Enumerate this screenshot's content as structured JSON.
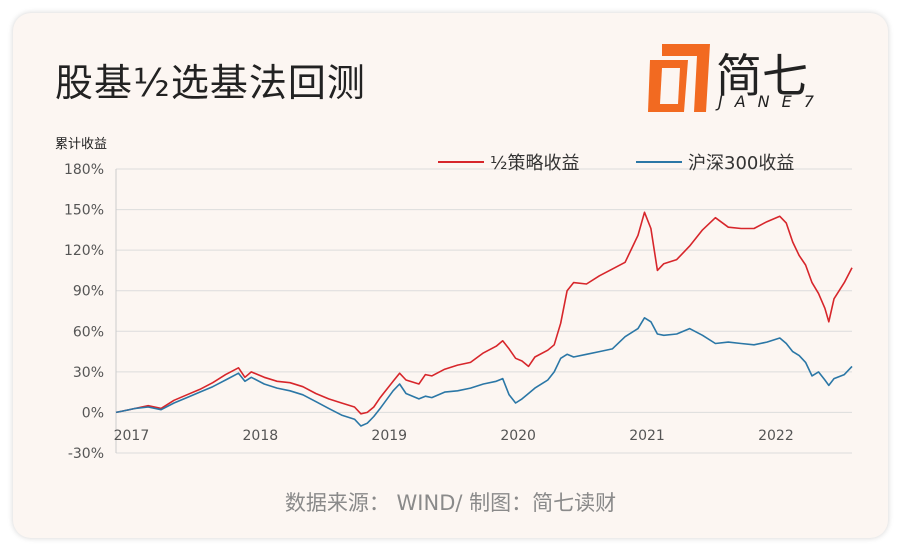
{
  "header": {
    "title": "股基½选基法回测"
  },
  "logo": {
    "name": "简七",
    "sub": "JANE7",
    "accent": "#f26a21"
  },
  "source": "数据来源： WIND/ 制图：简七读财",
  "chart_data": {
    "type": "line",
    "title": "股基½选基法回测",
    "ylabel": "累计收益",
    "xlabel": "",
    "ylim": [
      -30,
      180
    ],
    "yticks": [
      -30,
      0,
      30,
      60,
      90,
      120,
      150,
      180
    ],
    "ytick_labels": [
      "-30%",
      "0%",
      "30%",
      "60%",
      "90%",
      "120%",
      "150%",
      "180%"
    ],
    "xlim": [
      2016.95,
      2022.66
    ],
    "xticks": [
      2017,
      2018,
      2019,
      2020,
      2021,
      2022
    ],
    "xtick_labels": [
      "2017",
      "2018",
      "2019",
      "2020",
      "2021",
      "2022"
    ],
    "grid": true,
    "legend_position": "top-right",
    "series": [
      {
        "name": "½策略收益",
        "color": "#d7262b",
        "points": [
          [
            2016.95,
            0
          ],
          [
            2017.0,
            1
          ],
          [
            2017.1,
            3
          ],
          [
            2017.2,
            5
          ],
          [
            2017.3,
            3
          ],
          [
            2017.4,
            9
          ],
          [
            2017.5,
            13
          ],
          [
            2017.6,
            17
          ],
          [
            2017.7,
            22
          ],
          [
            2017.8,
            28
          ],
          [
            2017.9,
            33
          ],
          [
            2017.95,
            26
          ],
          [
            2018.0,
            30
          ],
          [
            2018.1,
            26
          ],
          [
            2018.2,
            23
          ],
          [
            2018.3,
            22
          ],
          [
            2018.4,
            19
          ],
          [
            2018.5,
            14
          ],
          [
            2018.6,
            10
          ],
          [
            2018.7,
            7
          ],
          [
            2018.8,
            4
          ],
          [
            2018.85,
            -1
          ],
          [
            2018.9,
            0
          ],
          [
            2018.95,
            4
          ],
          [
            2019.0,
            11
          ],
          [
            2019.1,
            23
          ],
          [
            2019.15,
            29
          ],
          [
            2019.2,
            24
          ],
          [
            2019.3,
            21
          ],
          [
            2019.35,
            28
          ],
          [
            2019.4,
            27
          ],
          [
            2019.5,
            32
          ],
          [
            2019.6,
            35
          ],
          [
            2019.7,
            37
          ],
          [
            2019.8,
            44
          ],
          [
            2019.9,
            49
          ],
          [
            2019.95,
            53
          ],
          [
            2020.0,
            47
          ],
          [
            2020.05,
            40
          ],
          [
            2020.1,
            38
          ],
          [
            2020.15,
            34
          ],
          [
            2020.2,
            41
          ],
          [
            2020.3,
            46
          ],
          [
            2020.35,
            50
          ],
          [
            2020.4,
            66
          ],
          [
            2020.45,
            90
          ],
          [
            2020.5,
            96
          ],
          [
            2020.6,
            95
          ],
          [
            2020.7,
            101
          ],
          [
            2020.8,
            106
          ],
          [
            2020.9,
            111
          ],
          [
            2021.0,
            131
          ],
          [
            2021.05,
            148
          ],
          [
            2021.1,
            136
          ],
          [
            2021.15,
            105
          ],
          [
            2021.2,
            110
          ],
          [
            2021.3,
            113
          ],
          [
            2021.4,
            123
          ],
          [
            2021.5,
            135
          ],
          [
            2021.6,
            144
          ],
          [
            2021.7,
            137
          ],
          [
            2021.8,
            136
          ],
          [
            2021.9,
            136
          ],
          [
            2022.0,
            141
          ],
          [
            2022.1,
            145
          ],
          [
            2022.15,
            140
          ],
          [
            2022.2,
            126
          ],
          [
            2022.25,
            116
          ],
          [
            2022.3,
            109
          ],
          [
            2022.35,
            96
          ],
          [
            2022.4,
            88
          ],
          [
            2022.45,
            77
          ],
          [
            2022.48,
            67
          ],
          [
            2022.52,
            84
          ],
          [
            2022.6,
            96
          ],
          [
            2022.66,
            107
          ]
        ]
      },
      {
        "name": "沪深300收益",
        "color": "#2b77a6",
        "points": [
          [
            2016.95,
            0
          ],
          [
            2017.0,
            1
          ],
          [
            2017.1,
            3
          ],
          [
            2017.2,
            4
          ],
          [
            2017.3,
            2
          ],
          [
            2017.4,
            7
          ],
          [
            2017.5,
            11
          ],
          [
            2017.6,
            15
          ],
          [
            2017.7,
            19
          ],
          [
            2017.8,
            24
          ],
          [
            2017.9,
            29
          ],
          [
            2017.95,
            23
          ],
          [
            2018.0,
            26
          ],
          [
            2018.1,
            21
          ],
          [
            2018.2,
            18
          ],
          [
            2018.3,
            16
          ],
          [
            2018.4,
            13
          ],
          [
            2018.5,
            8
          ],
          [
            2018.6,
            3
          ],
          [
            2018.7,
            -2
          ],
          [
            2018.8,
            -5
          ],
          [
            2018.85,
            -10
          ],
          [
            2018.9,
            -8
          ],
          [
            2018.95,
            -3
          ],
          [
            2019.0,
            3
          ],
          [
            2019.1,
            16
          ],
          [
            2019.15,
            21
          ],
          [
            2019.2,
            14
          ],
          [
            2019.3,
            10
          ],
          [
            2019.35,
            12
          ],
          [
            2019.4,
            11
          ],
          [
            2019.5,
            15
          ],
          [
            2019.6,
            16
          ],
          [
            2019.7,
            18
          ],
          [
            2019.8,
            21
          ],
          [
            2019.9,
            23
          ],
          [
            2019.95,
            25
          ],
          [
            2020.0,
            13
          ],
          [
            2020.05,
            7
          ],
          [
            2020.1,
            10
          ],
          [
            2020.15,
            14
          ],
          [
            2020.2,
            18
          ],
          [
            2020.3,
            24
          ],
          [
            2020.35,
            30
          ],
          [
            2020.4,
            40
          ],
          [
            2020.45,
            43
          ],
          [
            2020.5,
            41
          ],
          [
            2020.6,
            43
          ],
          [
            2020.7,
            45
          ],
          [
            2020.8,
            47
          ],
          [
            2020.9,
            56
          ],
          [
            2021.0,
            62
          ],
          [
            2021.05,
            70
          ],
          [
            2021.1,
            67
          ],
          [
            2021.15,
            58
          ],
          [
            2021.2,
            57
          ],
          [
            2021.3,
            58
          ],
          [
            2021.4,
            62
          ],
          [
            2021.5,
            57
          ],
          [
            2021.6,
            51
          ],
          [
            2021.7,
            52
          ],
          [
            2021.8,
            51
          ],
          [
            2021.9,
            50
          ],
          [
            2022.0,
            52
          ],
          [
            2022.1,
            55
          ],
          [
            2022.15,
            51
          ],
          [
            2022.2,
            45
          ],
          [
            2022.25,
            42
          ],
          [
            2022.3,
            37
          ],
          [
            2022.35,
            27
          ],
          [
            2022.4,
            30
          ],
          [
            2022.45,
            24
          ],
          [
            2022.48,
            20
          ],
          [
            2022.52,
            25
          ],
          [
            2022.6,
            28
          ],
          [
            2022.66,
            34
          ]
        ]
      }
    ]
  }
}
